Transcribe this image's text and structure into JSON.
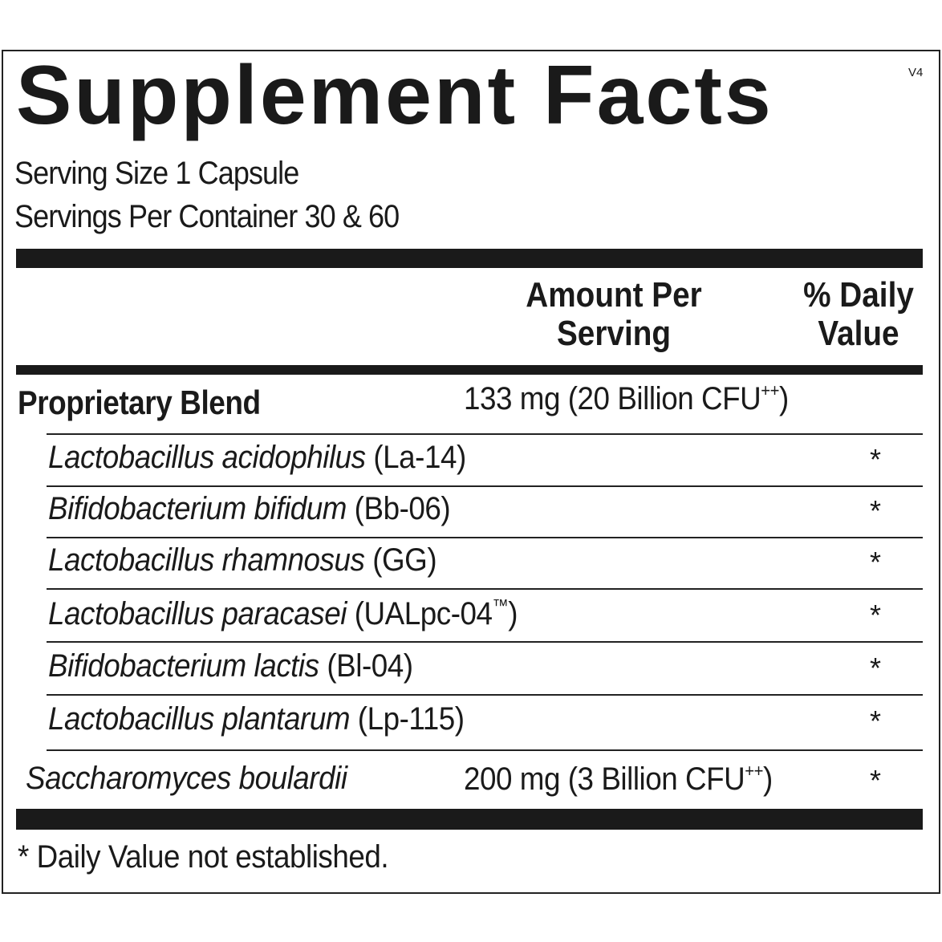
{
  "label": {
    "title": "Supplement Facts",
    "version": "V4",
    "serving_size": "Serving Size 1 Capsule",
    "servings_per_container": "Servings Per Container 30 & 60",
    "header": {
      "amount": [
        "Amount Per",
        "Serving"
      ],
      "daily_value": [
        "% Daily",
        "Value"
      ]
    },
    "blend": {
      "name": "Proprietary Blend",
      "amount": [
        "133 mg (20 Billion CFU",
        "++",
        ")"
      ]
    },
    "strains": [
      {
        "species": "Lactobacillus acidophilus",
        "strain": [
          "(La-14)"
        ],
        "dv": "*"
      },
      {
        "species": "Bifidobacterium bifidum",
        "strain": [
          "(Bb-06)"
        ],
        "dv": "*"
      },
      {
        "species": "Lactobacillus rhamnosus",
        "strain": [
          "(GG)"
        ],
        "dv": "*"
      },
      {
        "species": "Lactobacillus paracasei",
        "strain": [
          "(UALpc-04",
          "™",
          ")"
        ],
        "dv": "*"
      },
      {
        "species": "Bifidobacterium lactis",
        "strain": [
          "(Bl-04)"
        ],
        "dv": "*"
      },
      {
        "species": "Lactobacillus plantarum",
        "strain": [
          "(Lp-115)"
        ],
        "dv": "*"
      }
    ],
    "other": {
      "species": "Saccharomyces boulardii",
      "amount": [
        "200 mg (3 Billion CFU",
        "++",
        ")"
      ],
      "dv": "*"
    },
    "footnote": "* Daily Value not established."
  }
}
